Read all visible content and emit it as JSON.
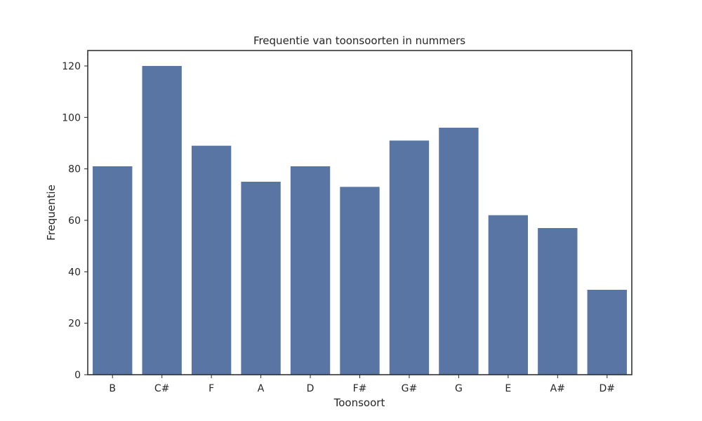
{
  "chart_data": {
    "type": "bar",
    "title": "Frequentie van toonsoorten in nummers",
    "xlabel": "Toonsoort",
    "ylabel": "Frequentie",
    "categories": [
      "B",
      "C#",
      "F",
      "A",
      "D",
      "F#",
      "G#",
      "G",
      "E",
      "A#",
      "D#"
    ],
    "values": [
      81,
      120,
      89,
      75,
      81,
      73,
      91,
      96,
      62,
      57,
      33
    ],
    "ylim": [
      0,
      126
    ],
    "yticks": [
      0,
      20,
      40,
      60,
      80,
      100,
      120
    ],
    "bar_color": "#5975a4",
    "grid": false
  }
}
